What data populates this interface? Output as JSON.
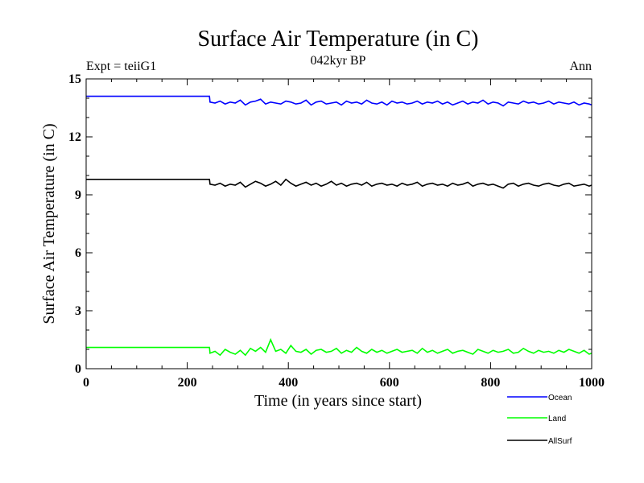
{
  "chart_data": {
    "type": "line",
    "title": "Surface Air Temperature (in C)",
    "subtitle": "042kyr BP",
    "left_label": "Expt = teiiG1",
    "right_label": "Ann",
    "xlabel": "Time (in years since start)",
    "ylabel": "Surface Air Temperature (in C)",
    "xlim": [
      0,
      1000
    ],
    "ylim": [
      0,
      15
    ],
    "x_ticks": [
      "0",
      "200",
      "400",
      "600",
      "800",
      "1000"
    ],
    "y_ticks": [
      "0",
      "3",
      "6",
      "9",
      "12",
      "15"
    ],
    "grid": false,
    "legend_position": "bottom-right",
    "series": [
      {
        "name": "Ocean",
        "color": "#0000ff",
        "x": [
          0,
          244,
          245,
          255,
          265,
          275,
          285,
          295,
          305,
          315,
          325,
          335,
          345,
          355,
          365,
          375,
          385,
          395,
          405,
          415,
          425,
          435,
          445,
          455,
          465,
          475,
          485,
          495,
          505,
          515,
          525,
          535,
          545,
          555,
          565,
          575,
          585,
          595,
          605,
          615,
          625,
          635,
          645,
          655,
          665,
          675,
          685,
          695,
          705,
          715,
          725,
          735,
          745,
          755,
          765,
          775,
          785,
          795,
          805,
          815,
          825,
          835,
          845,
          855,
          865,
          875,
          885,
          895,
          905,
          915,
          925,
          935,
          945,
          955,
          965,
          975,
          985,
          995,
          1000
        ],
        "y": [
          14.1,
          14.1,
          13.8,
          13.75,
          13.85,
          13.7,
          13.8,
          13.75,
          13.9,
          13.65,
          13.8,
          13.85,
          13.95,
          13.7,
          13.8,
          13.75,
          13.7,
          13.85,
          13.8,
          13.7,
          13.75,
          13.9,
          13.65,
          13.8,
          13.85,
          13.7,
          13.75,
          13.8,
          13.65,
          13.85,
          13.75,
          13.8,
          13.7,
          13.9,
          13.75,
          13.7,
          13.8,
          13.65,
          13.85,
          13.75,
          13.8,
          13.7,
          13.75,
          13.85,
          13.7,
          13.8,
          13.75,
          13.85,
          13.7,
          13.8,
          13.65,
          13.75,
          13.85,
          13.7,
          13.8,
          13.75,
          13.9,
          13.7,
          13.8,
          13.75,
          13.6,
          13.8,
          13.75,
          13.7,
          13.85,
          13.75,
          13.8,
          13.7,
          13.75,
          13.85,
          13.7,
          13.8,
          13.75,
          13.7,
          13.8,
          13.65,
          13.75,
          13.7,
          13.65
        ]
      },
      {
        "name": "Land",
        "color": "#00ff00",
        "x": [
          0,
          244,
          245,
          255,
          265,
          275,
          285,
          295,
          305,
          315,
          325,
          335,
          345,
          355,
          365,
          375,
          385,
          395,
          405,
          415,
          425,
          435,
          445,
          455,
          465,
          475,
          485,
          495,
          505,
          515,
          525,
          535,
          545,
          555,
          565,
          575,
          585,
          595,
          605,
          615,
          625,
          635,
          645,
          655,
          665,
          675,
          685,
          695,
          705,
          715,
          725,
          735,
          745,
          755,
          765,
          775,
          785,
          795,
          805,
          815,
          825,
          835,
          845,
          855,
          865,
          875,
          885,
          895,
          905,
          915,
          925,
          935,
          945,
          955,
          965,
          975,
          985,
          995,
          1000
        ],
        "y": [
          1.1,
          1.1,
          0.8,
          0.9,
          0.7,
          1.0,
          0.85,
          0.75,
          0.95,
          0.7,
          1.05,
          0.9,
          1.1,
          0.85,
          1.5,
          0.9,
          1.0,
          0.8,
          1.2,
          0.9,
          0.85,
          1.0,
          0.75,
          0.95,
          1.0,
          0.85,
          0.9,
          1.05,
          0.8,
          0.95,
          0.85,
          1.1,
          0.9,
          0.8,
          1.0,
          0.85,
          0.95,
          0.8,
          0.9,
          1.0,
          0.85,
          0.9,
          0.95,
          0.8,
          1.05,
          0.85,
          0.95,
          0.8,
          0.9,
          1.0,
          0.8,
          0.9,
          0.95,
          0.85,
          0.75,
          1.0,
          0.9,
          0.8,
          0.95,
          0.85,
          0.9,
          1.0,
          0.8,
          0.85,
          1.05,
          0.9,
          0.8,
          0.95,
          0.85,
          0.9,
          0.8,
          0.95,
          0.85,
          1.0,
          0.9,
          0.8,
          0.95,
          0.75,
          0.8
        ]
      },
      {
        "name": "AllSurf",
        "color": "#000000",
        "x": [
          0,
          244,
          245,
          255,
          265,
          275,
          285,
          295,
          305,
          315,
          325,
          335,
          345,
          355,
          365,
          375,
          385,
          395,
          405,
          415,
          425,
          435,
          445,
          455,
          465,
          475,
          485,
          495,
          505,
          515,
          525,
          535,
          545,
          555,
          565,
          575,
          585,
          595,
          605,
          615,
          625,
          635,
          645,
          655,
          665,
          675,
          685,
          695,
          705,
          715,
          725,
          735,
          745,
          755,
          765,
          775,
          785,
          795,
          805,
          815,
          825,
          835,
          845,
          855,
          865,
          875,
          885,
          895,
          905,
          915,
          925,
          935,
          945,
          955,
          965,
          975,
          985,
          995,
          1000
        ],
        "y": [
          9.8,
          9.8,
          9.55,
          9.5,
          9.6,
          9.45,
          9.55,
          9.5,
          9.65,
          9.4,
          9.55,
          9.7,
          9.6,
          9.45,
          9.55,
          9.7,
          9.5,
          9.8,
          9.6,
          9.45,
          9.55,
          9.65,
          9.5,
          9.6,
          9.45,
          9.55,
          9.7,
          9.5,
          9.6,
          9.45,
          9.55,
          9.6,
          9.5,
          9.65,
          9.45,
          9.55,
          9.6,
          9.5,
          9.55,
          9.45,
          9.6,
          9.5,
          9.55,
          9.65,
          9.45,
          9.55,
          9.6,
          9.5,
          9.55,
          9.45,
          9.6,
          9.5,
          9.55,
          9.65,
          9.45,
          9.55,
          9.6,
          9.5,
          9.55,
          9.45,
          9.35,
          9.55,
          9.6,
          9.45,
          9.55,
          9.6,
          9.5,
          9.45,
          9.55,
          9.6,
          9.5,
          9.45,
          9.55,
          9.6,
          9.45,
          9.5,
          9.55,
          9.45,
          9.5
        ]
      }
    ]
  }
}
